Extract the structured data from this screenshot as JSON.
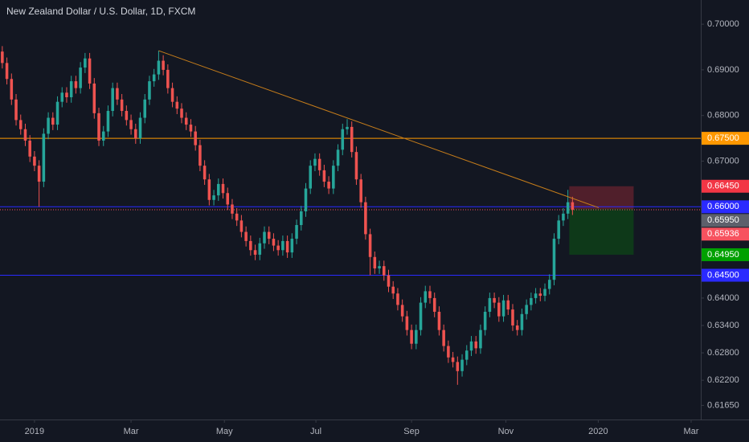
{
  "chart_data": {
    "type": "candlestick",
    "title": "New Zealand Dollar / U.S. Dollar, 1D, FXCM",
    "up_color": "#26a69a",
    "down_color": "#ef5350",
    "xlim": [
      0,
      152.4
    ],
    "ylim": [
      0.6134,
      0.7053
    ],
    "xticks": [
      {
        "value": 7.5,
        "label": "2019"
      },
      {
        "value": 28.5,
        "label": "Mar"
      },
      {
        "value": 48.8,
        "label": "May"
      },
      {
        "value": 68.7,
        "label": "Jul"
      },
      {
        "value": 89.5,
        "label": "Sep"
      },
      {
        "value": 110.0,
        "label": "Nov"
      },
      {
        "value": 130.1,
        "label": "2020"
      },
      {
        "value": 150.3,
        "label": "Mar"
      }
    ],
    "yticks": [
      {
        "value": 0.7,
        "label": "0.70000"
      },
      {
        "value": 0.69,
        "label": "0.69000"
      },
      {
        "value": 0.68,
        "label": "0.68000"
      },
      {
        "value": 0.67,
        "label": "0.67000"
      },
      {
        "value": 0.64,
        "label": "0.64000"
      },
      {
        "value": 0.634,
        "label": "0.63400"
      },
      {
        "value": 0.628,
        "label": "0.62800"
      },
      {
        "value": 0.622,
        "label": "0.62200"
      },
      {
        "value": 0.6165,
        "label": "0.61650"
      }
    ],
    "candles": [
      [
        0.694,
        0.6952,
        0.6903,
        0.6915
      ],
      [
        0.6915,
        0.6927,
        0.6868,
        0.688
      ],
      [
        0.688,
        0.6892,
        0.6823,
        0.6835
      ],
      [
        0.6835,
        0.6847,
        0.6778,
        0.679
      ],
      [
        0.679,
        0.6802,
        0.6758,
        0.677
      ],
      [
        0.677,
        0.6782,
        0.6733,
        0.6745
      ],
      [
        0.6745,
        0.6757,
        0.6698,
        0.671
      ],
      [
        0.671,
        0.6722,
        0.6678,
        0.669
      ],
      [
        0.669,
        0.6702,
        0.66,
        0.6655
      ],
      [
        0.6655,
        0.6772,
        0.6643,
        0.676
      ],
      [
        0.676,
        0.6807,
        0.6748,
        0.6795
      ],
      [
        0.6795,
        0.6807,
        0.6768,
        0.678
      ],
      [
        0.678,
        0.6842,
        0.6768,
        0.683
      ],
      [
        0.683,
        0.6862,
        0.6818,
        0.685
      ],
      [
        0.685,
        0.6862,
        0.6828,
        0.684
      ],
      [
        0.684,
        0.6887,
        0.6828,
        0.6875
      ],
      [
        0.6875,
        0.6887,
        0.6848,
        0.686
      ],
      [
        0.686,
        0.6917,
        0.6848,
        0.6905
      ],
      [
        0.6905,
        0.6937,
        0.6893,
        0.6925
      ],
      [
        0.6925,
        0.6937,
        0.6858,
        0.687
      ],
      [
        0.687,
        0.6882,
        0.6793,
        0.6805
      ],
      [
        0.6805,
        0.6817,
        0.6733,
        0.6745
      ],
      [
        0.6745,
        0.6777,
        0.6733,
        0.6765
      ],
      [
        0.6765,
        0.6822,
        0.6753,
        0.681
      ],
      [
        0.681,
        0.6872,
        0.6798,
        0.686
      ],
      [
        0.686,
        0.6872,
        0.6823,
        0.6835
      ],
      [
        0.6835,
        0.6847,
        0.6798,
        0.681
      ],
      [
        0.681,
        0.6822,
        0.6778,
        0.679
      ],
      [
        0.679,
        0.6802,
        0.6758,
        0.677
      ],
      [
        0.677,
        0.6782,
        0.6738,
        0.675
      ],
      [
        0.675,
        0.6807,
        0.6738,
        0.6795
      ],
      [
        0.6795,
        0.6847,
        0.6783,
        0.6835
      ],
      [
        0.6835,
        0.6887,
        0.6823,
        0.6875
      ],
      [
        0.6875,
        0.6902,
        0.6863,
        0.689
      ],
      [
        0.689,
        0.6942,
        0.6878,
        0.692
      ],
      [
        0.692,
        0.6932,
        0.6888,
        0.69
      ],
      [
        0.69,
        0.6912,
        0.6848,
        0.686
      ],
      [
        0.686,
        0.6872,
        0.6818,
        0.683
      ],
      [
        0.683,
        0.6842,
        0.6803,
        0.6815
      ],
      [
        0.6815,
        0.6827,
        0.6783,
        0.6795
      ],
      [
        0.6795,
        0.6807,
        0.6768,
        0.678
      ],
      [
        0.678,
        0.6792,
        0.6753,
        0.6765
      ],
      [
        0.6765,
        0.6777,
        0.6723,
        0.6735
      ],
      [
        0.6735,
        0.6747,
        0.6678,
        0.669
      ],
      [
        0.669,
        0.6702,
        0.6648,
        0.666
      ],
      [
        0.666,
        0.6672,
        0.6603,
        0.6615
      ],
      [
        0.6615,
        0.6637,
        0.6603,
        0.6625
      ],
      [
        0.6625,
        0.6662,
        0.6613,
        0.665
      ],
      [
        0.665,
        0.6662,
        0.6618,
        0.663
      ],
      [
        0.663,
        0.6642,
        0.6593,
        0.6605
      ],
      [
        0.6605,
        0.6617,
        0.6573,
        0.6585
      ],
      [
        0.6585,
        0.6597,
        0.6558,
        0.657
      ],
      [
        0.657,
        0.6582,
        0.6533,
        0.6545
      ],
      [
        0.6545,
        0.6557,
        0.6513,
        0.6525
      ],
      [
        0.6525,
        0.6537,
        0.6493,
        0.6505
      ],
      [
        0.6505,
        0.6517,
        0.6483,
        0.6495
      ],
      [
        0.6495,
        0.6532,
        0.6483,
        0.652
      ],
      [
        0.652,
        0.6557,
        0.6508,
        0.6545
      ],
      [
        0.6545,
        0.6557,
        0.6518,
        0.653
      ],
      [
        0.653,
        0.6542,
        0.6503,
        0.6515
      ],
      [
        0.6515,
        0.6527,
        0.6493,
        0.6505
      ],
      [
        0.6505,
        0.6537,
        0.6493,
        0.6525
      ],
      [
        0.6525,
        0.6537,
        0.6488,
        0.65
      ],
      [
        0.65,
        0.6542,
        0.6488,
        0.653
      ],
      [
        0.653,
        0.6572,
        0.6518,
        0.656
      ],
      [
        0.656,
        0.6602,
        0.6548,
        0.659
      ],
      [
        0.659,
        0.6652,
        0.6578,
        0.664
      ],
      [
        0.664,
        0.6702,
        0.6628,
        0.669
      ],
      [
        0.669,
        0.6717,
        0.6678,
        0.6705
      ],
      [
        0.6705,
        0.6717,
        0.6668,
        0.668
      ],
      [
        0.668,
        0.6692,
        0.6643,
        0.6655
      ],
      [
        0.6655,
        0.6667,
        0.6628,
        0.664
      ],
      [
        0.664,
        0.6702,
        0.6628,
        0.669
      ],
      [
        0.669,
        0.6737,
        0.6678,
        0.6725
      ],
      [
        0.6725,
        0.6782,
        0.6713,
        0.677
      ],
      [
        0.677,
        0.6792,
        0.6758,
        0.6775
      ],
      [
        0.6775,
        0.6787,
        0.6708,
        0.672
      ],
      [
        0.672,
        0.6732,
        0.6648,
        0.666
      ],
      [
        0.666,
        0.6672,
        0.6598,
        0.661
      ],
      [
        0.661,
        0.6622,
        0.6528,
        0.654
      ],
      [
        0.654,
        0.6552,
        0.645,
        0.649
      ],
      [
        0.649,
        0.6502,
        0.6453,
        0.6465
      ],
      [
        0.6465,
        0.6482,
        0.6453,
        0.647
      ],
      [
        0.647,
        0.6482,
        0.6438,
        0.645
      ],
      [
        0.645,
        0.6462,
        0.6413,
        0.6425
      ],
      [
        0.6425,
        0.6437,
        0.6398,
        0.641
      ],
      [
        0.641,
        0.6422,
        0.6373,
        0.6385
      ],
      [
        0.6385,
        0.6397,
        0.6348,
        0.636
      ],
      [
        0.636,
        0.6372,
        0.6318,
        0.633
      ],
      [
        0.633,
        0.6342,
        0.6288,
        0.63
      ],
      [
        0.63,
        0.6342,
        0.6288,
        0.633
      ],
      [
        0.633,
        0.6402,
        0.6318,
        0.639
      ],
      [
        0.639,
        0.6427,
        0.6378,
        0.6415
      ],
      [
        0.6415,
        0.6427,
        0.6388,
        0.64
      ],
      [
        0.64,
        0.6412,
        0.6358,
        0.637
      ],
      [
        0.637,
        0.6382,
        0.6318,
        0.633
      ],
      [
        0.633,
        0.6342,
        0.6283,
        0.6295
      ],
      [
        0.6295,
        0.6307,
        0.6258,
        0.627
      ],
      [
        0.627,
        0.6282,
        0.6248,
        0.626
      ],
      [
        0.626,
        0.6272,
        0.621,
        0.624
      ],
      [
        0.624,
        0.6277,
        0.6228,
        0.6265
      ],
      [
        0.6265,
        0.6297,
        0.6253,
        0.6285
      ],
      [
        0.6285,
        0.6317,
        0.6273,
        0.6305
      ],
      [
        0.6305,
        0.6317,
        0.6278,
        0.629
      ],
      [
        0.629,
        0.6342,
        0.6278,
        0.633
      ],
      [
        0.633,
        0.6382,
        0.6318,
        0.637
      ],
      [
        0.637,
        0.6412,
        0.6358,
        0.64
      ],
      [
        0.64,
        0.6412,
        0.6378,
        0.639
      ],
      [
        0.639,
        0.6402,
        0.6348,
        0.636
      ],
      [
        0.636,
        0.6407,
        0.6348,
        0.6395
      ],
      [
        0.6395,
        0.6407,
        0.6363,
        0.6375
      ],
      [
        0.6375,
        0.6387,
        0.6328,
        0.634
      ],
      [
        0.634,
        0.6352,
        0.6318,
        0.633
      ],
      [
        0.633,
        0.6377,
        0.6318,
        0.6365
      ],
      [
        0.6365,
        0.6397,
        0.6353,
        0.6385
      ],
      [
        0.6385,
        0.6412,
        0.6373,
        0.64
      ],
      [
        0.64,
        0.6422,
        0.6388,
        0.641
      ],
      [
        0.641,
        0.6422,
        0.6393,
        0.6405
      ],
      [
        0.6405,
        0.6432,
        0.6393,
        0.642
      ],
      [
        0.642,
        0.6452,
        0.6408,
        0.644
      ],
      [
        0.644,
        0.6542,
        0.6428,
        0.653
      ],
      [
        0.653,
        0.6582,
        0.6518,
        0.657
      ],
      [
        0.657,
        0.6597,
        0.6558,
        0.6585
      ],
      [
        0.6585,
        0.6637,
        0.6573,
        0.661
      ],
      [
        0.661,
        0.6622,
        0.6582,
        0.65936
      ]
    ],
    "levels": [
      {
        "value": 0.675,
        "label": "0.67500",
        "color": "#ff9800",
        "dotted": false
      },
      {
        "value": 0.66,
        "label": "0.66000",
        "color": "#2a2aff",
        "dotted": false
      },
      {
        "value": 0.645,
        "label": "0.64500",
        "color": "#2a2aff",
        "dotted": false
      },
      {
        "value": 0.65936,
        "label": "0.65936",
        "color": "#f7525f",
        "dotted": true
      }
    ],
    "trendline": {
      "color": "#c77d1a",
      "points": [
        {
          "x": 34.5,
          "y": 0.6942
        },
        {
          "x": 130.2,
          "y": 0.6598
        }
      ]
    },
    "position": {
      "x": [
        123.8,
        137.8
      ],
      "entry": {
        "value": 0.6595,
        "label": "0.65950",
        "color": "#5d606b"
      },
      "stop": {
        "value": 0.6645,
        "label": "0.66450",
        "color": "#f23645"
      },
      "target": {
        "value": 0.6495,
        "label": "0.64950",
        "color": "#00a000"
      }
    }
  }
}
